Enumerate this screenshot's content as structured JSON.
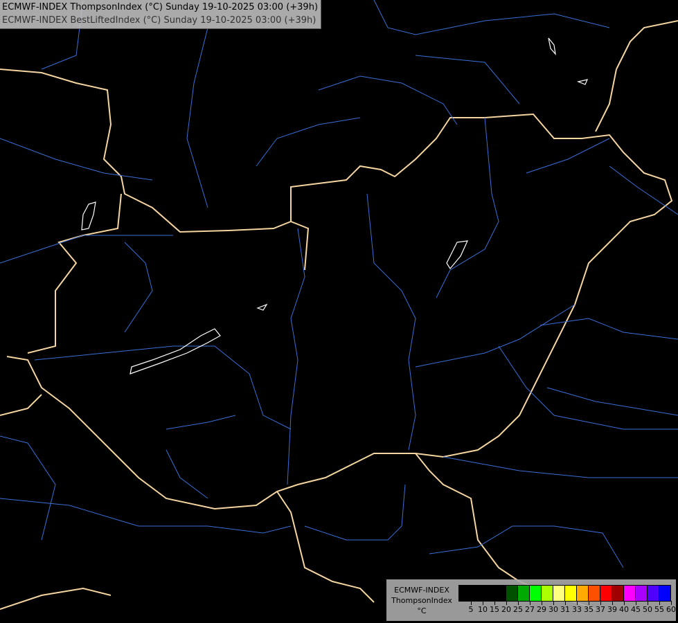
{
  "title": {
    "line1": "ECMWF-INDEX ThompsonIndex (°C) Sunday 19-10-2025 03:00 (+39h)",
    "line2": "ECMWF-INDEX BestLiftedIndex (°C) Sunday 19-10-2025 03:00 (+39h)"
  },
  "legend": {
    "source": "ECMWF-INDEX",
    "parameter": "ThompsonIndex",
    "unit": "°C",
    "colors": [
      "#000000",
      "#000000",
      "#000000",
      "#000000",
      "#005000",
      "#00aa00",
      "#00ff00",
      "#aaff00",
      "#ffff80",
      "#ffff00",
      "#ffaa00",
      "#ff5000",
      "#ff0000",
      "#a00000",
      "#ff00ff",
      "#aa00ff",
      "#5000ff",
      "#0000ff"
    ],
    "labels": [
      "5",
      "10",
      "15",
      "20",
      "25",
      "27",
      "29",
      "30",
      "31",
      "33",
      "35",
      "37",
      "39",
      "40",
      "45",
      "50",
      "55",
      "60"
    ]
  },
  "map_colors": {
    "border": "#f5d5a0",
    "river": "#3a6fd8",
    "lake": "#ffffff"
  }
}
